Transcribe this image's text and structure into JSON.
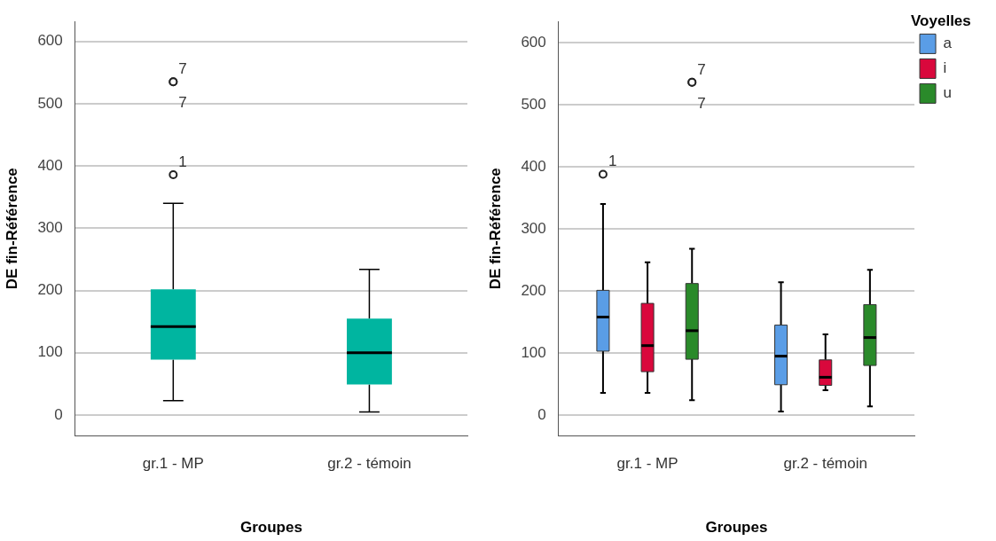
{
  "chart_data": [
    {
      "type": "box",
      "xlabel": "Groupes",
      "ylabel": "DE fin-Référence",
      "categories": [
        "gr.1 - MP",
        "gr.2 - témoin"
      ],
      "ylim": [
        -33,
        632
      ],
      "yticks": [
        0,
        100,
        200,
        300,
        400,
        500,
        600
      ],
      "grid": "y",
      "legend": false,
      "series": [
        {
          "color": "#00b5a0",
          "boxes": [
            {
              "low": 23,
              "q1": 89,
              "median": 142,
              "q3": 202,
              "high": 340,
              "outliers": [
                535,
                535,
                386
              ]
            },
            {
              "low": 5,
              "q1": 49,
              "median": 100,
              "q3": 155,
              "high": 234
            }
          ]
        }
      ],
      "annotations": [
        "7",
        "7",
        "1"
      ]
    },
    {
      "type": "box",
      "xlabel": "Groupes",
      "ylabel": "DE fin-Référence",
      "legend_title": "Voyelles",
      "categories": [
        "gr.1 - MP",
        "gr.2 - témoin"
      ],
      "ylim": [
        -33,
        634
      ],
      "yticks": [
        0,
        100,
        200,
        300,
        400,
        500,
        600
      ],
      "grid": "y",
      "legend": "top right",
      "series": [
        {
          "name": "a",
          "color": "#5a9de6",
          "boxes": [
            {
              "low": 36,
              "q1": 103,
              "median": 158,
              "q3": 201,
              "high": 340,
              "outliers": [
                388
              ]
            },
            {
              "low": 6,
              "q1": 49,
              "median": 95,
              "q3": 145,
              "high": 214
            }
          ]
        },
        {
          "name": "i",
          "color": "#d9083c",
          "boxes": [
            {
              "low": 36,
              "q1": 70,
              "median": 112,
              "q3": 180,
              "high": 246
            },
            {
              "low": 40,
              "q1": 48,
              "median": 61,
              "q3": 89,
              "high": 130
            }
          ]
        },
        {
          "name": "u",
          "color": "#2a8a2a",
          "boxes": [
            {
              "low": 24,
              "q1": 90,
              "median": 136,
              "q3": 212,
              "high": 268,
              "outliers": [
                536,
                536
              ]
            },
            {
              "low": 14,
              "q1": 80,
              "median": 125,
              "q3": 178,
              "high": 234
            }
          ]
        }
      ],
      "annotations": [
        "1",
        "7",
        "7"
      ]
    }
  ]
}
